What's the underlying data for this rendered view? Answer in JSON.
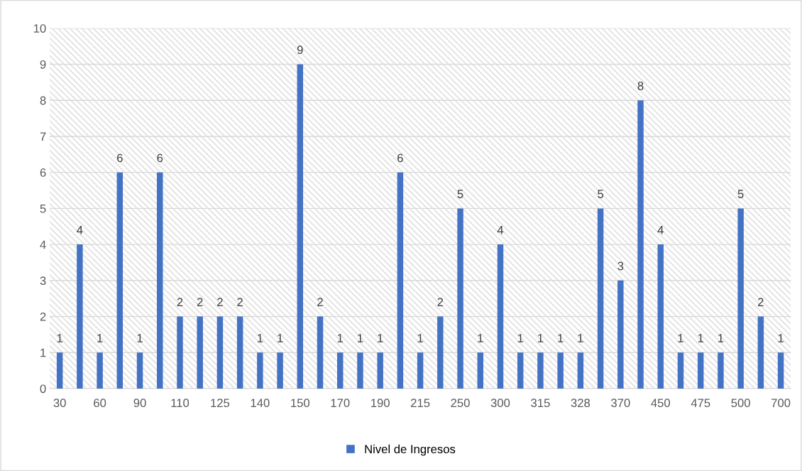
{
  "chart_data": {
    "type": "bar",
    "categories": [
      "30",
      null,
      "60",
      null,
      "90",
      null,
      "110",
      null,
      "125",
      null,
      "140",
      null,
      "150",
      null,
      "170",
      null,
      "190",
      null,
      "215",
      null,
      "250",
      null,
      "300",
      null,
      "315",
      null,
      "328",
      null,
      "370",
      null,
      "450",
      null,
      "475",
      null,
      "500",
      null,
      "700"
    ],
    "series": [
      {
        "name": "Nivel de Ingresos",
        "color": "#4472c4",
        "values": [
          1,
          4,
          1,
          6,
          1,
          6,
          2,
          2,
          2,
          2,
          1,
          1,
          9,
          2,
          1,
          1,
          1,
          6,
          1,
          2,
          5,
          1,
          4,
          1,
          1,
          1,
          1,
          5,
          3,
          8,
          4,
          1,
          1,
          1,
          5,
          2,
          1
        ]
      }
    ],
    "ylim": [
      0,
      10
    ],
    "yticks": [
      0,
      1,
      2,
      3,
      4,
      5,
      6,
      7,
      8,
      9,
      10
    ],
    "grid": "y",
    "legend": "bottom",
    "data_labels": true
  }
}
